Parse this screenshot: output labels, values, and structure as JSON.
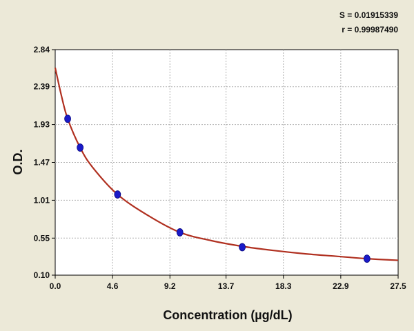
{
  "stats": {
    "s_text": "S = 0.01915339",
    "r_text": "r = 0.99987490"
  },
  "chart_data": {
    "type": "scatter",
    "xlabel": "Concentration (µg/dL)",
    "ylabel": "O.D.",
    "xlim": [
      0.0,
      27.5
    ],
    "ylim": [
      0.1,
      2.84
    ],
    "x_ticks": [
      "0.0",
      "4.6",
      "9.2",
      "13.7",
      "18.3",
      "22.9",
      "27.5"
    ],
    "y_ticks": [
      "0.10",
      "0.55",
      "1.01",
      "1.47",
      "1.93",
      "2.39",
      "2.84"
    ],
    "grid": true,
    "series": [
      {
        "points": [
          {
            "x": 1.0,
            "y": 2.0
          },
          {
            "x": 2.0,
            "y": 1.65
          },
          {
            "x": 5.0,
            "y": 1.08
          },
          {
            "x": 10.0,
            "y": 0.62
          },
          {
            "x": 15.0,
            "y": 0.44
          },
          {
            "x": 25.0,
            "y": 0.3
          }
        ],
        "marker_color": "#1A1AC8"
      }
    ],
    "fit_curve": {
      "color": "#B03020",
      "points": [
        {
          "x": 0.0,
          "y": 2.62
        },
        {
          "x": 0.5,
          "y": 2.28
        },
        {
          "x": 1.0,
          "y": 2.0
        },
        {
          "x": 2.0,
          "y": 1.65
        },
        {
          "x": 3.0,
          "y": 1.41
        },
        {
          "x": 5.0,
          "y": 1.08
        },
        {
          "x": 7.5,
          "y": 0.82
        },
        {
          "x": 10.0,
          "y": 0.62
        },
        {
          "x": 12.5,
          "y": 0.52
        },
        {
          "x": 15.0,
          "y": 0.45
        },
        {
          "x": 17.5,
          "y": 0.4
        },
        {
          "x": 20.0,
          "y": 0.36
        },
        {
          "x": 22.5,
          "y": 0.33
        },
        {
          "x": 25.0,
          "y": 0.3
        },
        {
          "x": 27.5,
          "y": 0.28
        }
      ]
    }
  }
}
